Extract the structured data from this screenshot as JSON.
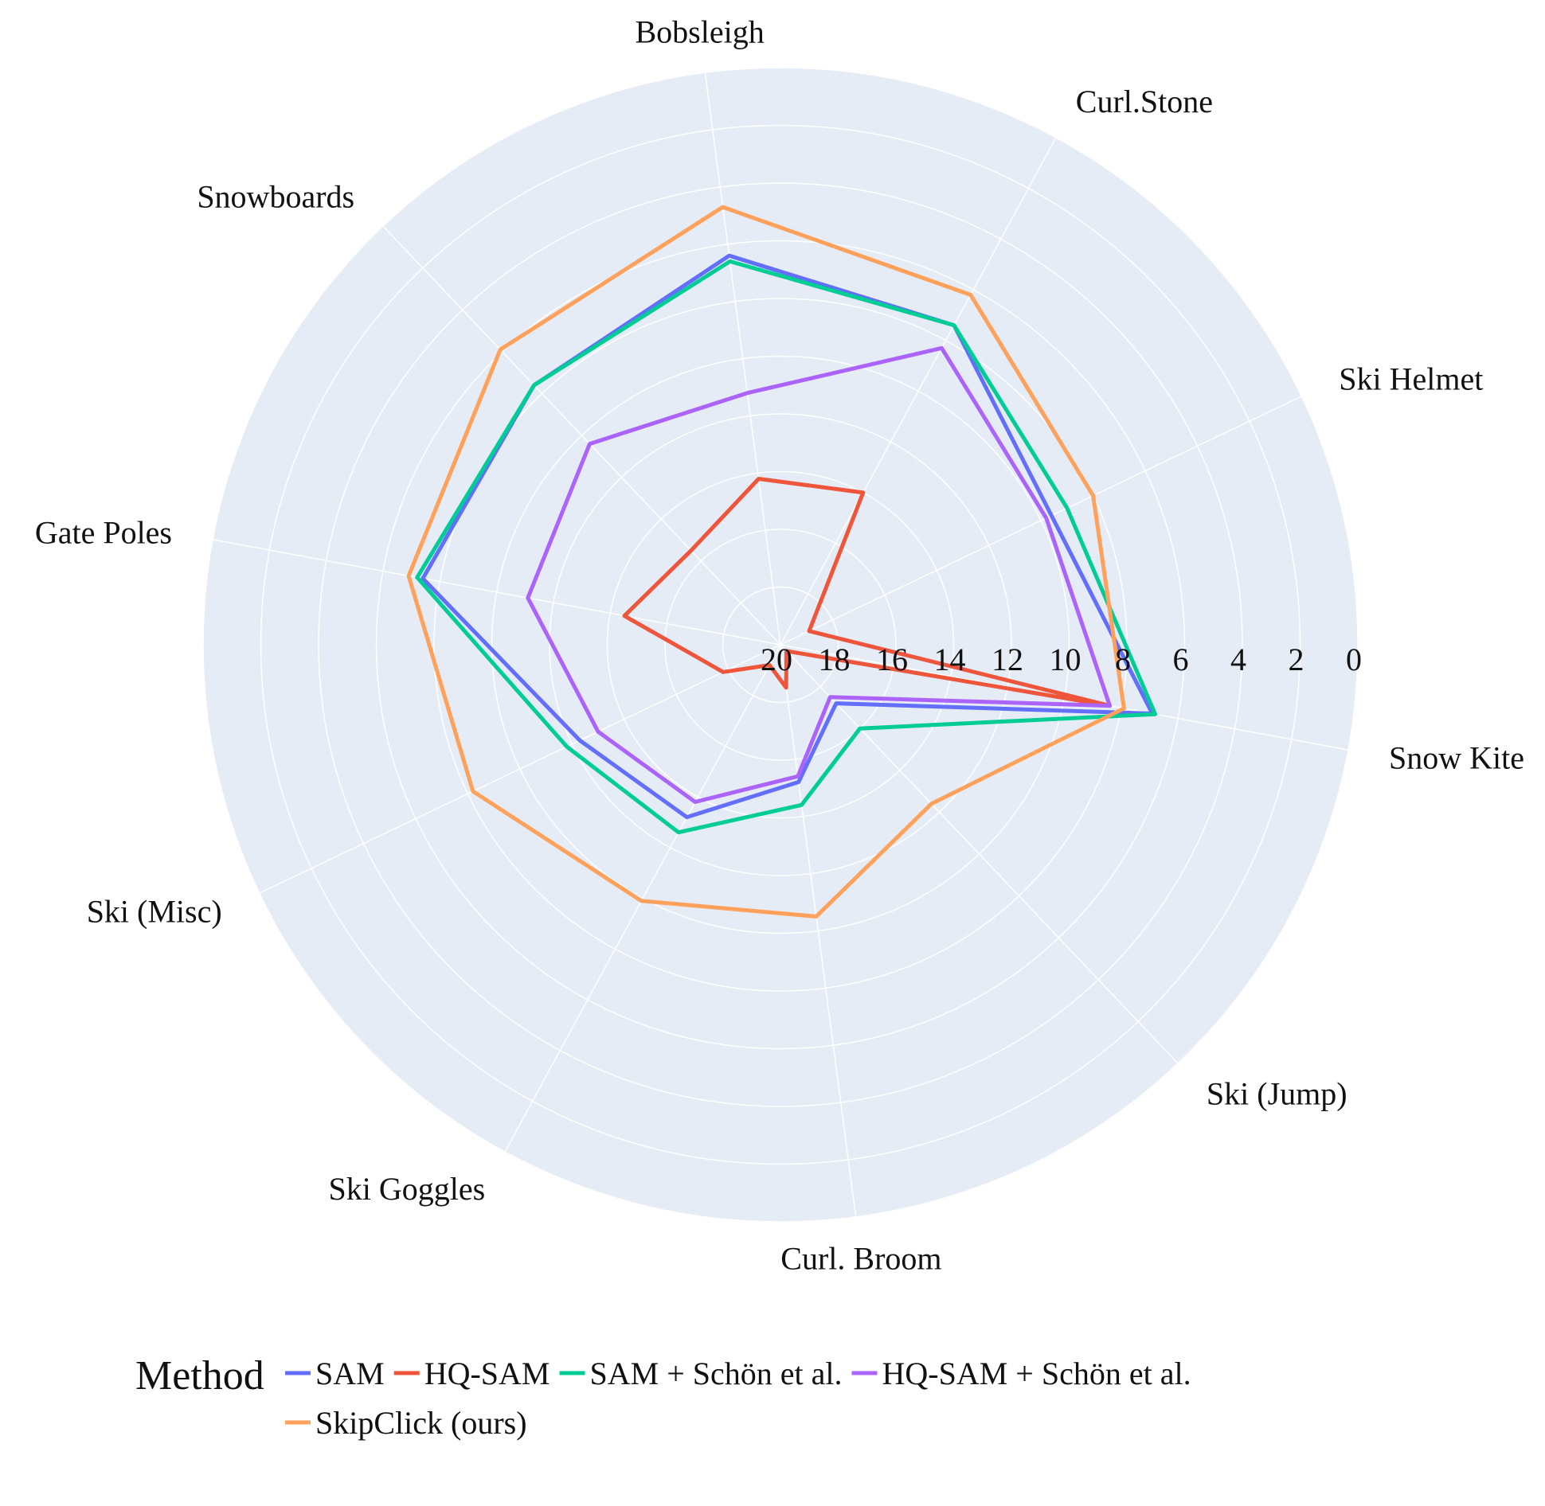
{
  "chart_data": {
    "type": "radar",
    "categories": [
      "Snow Kite",
      "Ski Helmet",
      "Curl.Stone",
      "Bobsleigh",
      "Snowboards",
      "Gate Poles",
      "Ski (Misc)",
      "Ski Goggles",
      "Curl. Broom",
      "Ski (Jump)"
    ],
    "radial_axis": {
      "range": [
        20,
        0
      ],
      "reversed": true,
      "tick_values": [
        20,
        18,
        16,
        14,
        12,
        10,
        8,
        6,
        4,
        2,
        0
      ],
      "tick_labels": [
        "20",
        "18",
        "16",
        "14",
        "12",
        "10",
        "8",
        "6",
        "4",
        "2",
        "0"
      ]
    },
    "series": [
      {
        "name": "SAM",
        "color": "#636efa",
        "values": [
          6.9,
          9.6,
          7.4,
          6.4,
          7.6,
          7.4,
          12.3,
          13.2,
          15.2,
          17.2
        ]
      },
      {
        "name": "HQ-SAM",
        "color": "#ef553b",
        "values": [
          8.4,
          18.9,
          14.0,
          14.2,
          15.5,
          14.5,
          17.8,
          19.2,
          18.5,
          19.7
        ]
      },
      {
        "name": "SAM + Schön et al.",
        "color": "#00cc96",
        "values": [
          6.8,
          9.0,
          7.4,
          6.6,
          7.6,
          7.2,
          11.8,
          12.6,
          14.4,
          16.0
        ]
      },
      {
        "name": "HQ-SAM + Schön et al.",
        "color": "#ab63fa",
        "values": [
          8.4,
          9.8,
          8.3,
          11.2,
          10.4,
          11.1,
          13.0,
          13.8,
          15.4,
          17.5
        ]
      },
      {
        "name": "SkipClick (ours)",
        "color": "#ffa15a",
        "values": [
          7.9,
          8.0,
          6.2,
          4.7,
          5.9,
          6.9,
          8.2,
          9.9,
          10.5,
          12.4
        ]
      }
    ],
    "legend": {
      "title": "Method",
      "placement": "bottom"
    },
    "grid": true,
    "background": "#e5ecf6"
  }
}
